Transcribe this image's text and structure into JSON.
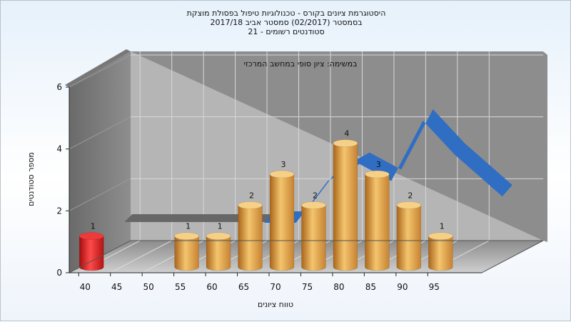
{
  "chart_data": {
    "type": "bar",
    "title_lines": [
      "היסטוגרמת ציונים בקורס - טכנולוגיות טיפול בפסולת מוצקת",
      "בסמסטר  (02/2017)  סמסטר אביב 2017/18",
      "סטודנטים רשומים - 21"
    ],
    "subtitle": "במשימה: ציון סופי במחשב המרכזי",
    "xlabel": "טווח ציונים",
    "ylabel": "מספר סטודנטים",
    "x_ticks": [
      "40",
      "45",
      "50",
      "55",
      "60",
      "65",
      "70",
      "75",
      "80",
      "85",
      "90",
      "95"
    ],
    "y_ticks": [
      "0",
      "2",
      "4",
      "6"
    ],
    "ylim": [
      0,
      6
    ],
    "bars": [
      {
        "x": 40,
        "value": 1,
        "label": "1",
        "color": "red"
      },
      {
        "x": 55,
        "value": 1,
        "label": "1",
        "color": "orange"
      },
      {
        "x": 60,
        "value": 1,
        "label": "1",
        "color": "orange"
      },
      {
        "x": 65,
        "value": 2,
        "label": "2",
        "color": "orange"
      },
      {
        "x": 70,
        "value": 3,
        "label": "3",
        "color": "orange"
      },
      {
        "x": 75,
        "value": 2,
        "label": "2",
        "color": "orange"
      },
      {
        "x": 80,
        "value": 4,
        "label": "4",
        "color": "orange"
      },
      {
        "x": 85,
        "value": 3,
        "label": "3",
        "color": "orange"
      },
      {
        "x": 90,
        "value": 2,
        "label": "2",
        "color": "orange"
      },
      {
        "x": 95,
        "value": 1,
        "label": "1",
        "color": "orange"
      }
    ],
    "ribbon": {
      "x": [
        62.5,
        67.5,
        72.5,
        77.5,
        82.5,
        87.5,
        92.5,
        100
      ],
      "values": [
        0,
        0,
        1.35,
        1.9,
        1.35,
        3.3,
        2.2,
        0.85
      ]
    },
    "reference_band": {
      "from": 40,
      "to": 62.5,
      "value": 0
    },
    "colors": {
      "red": "#e41818",
      "orange": "#e2a23e",
      "ribbon": "#2f6ec2",
      "band": "#676767"
    },
    "grid": true,
    "legend": "none"
  }
}
